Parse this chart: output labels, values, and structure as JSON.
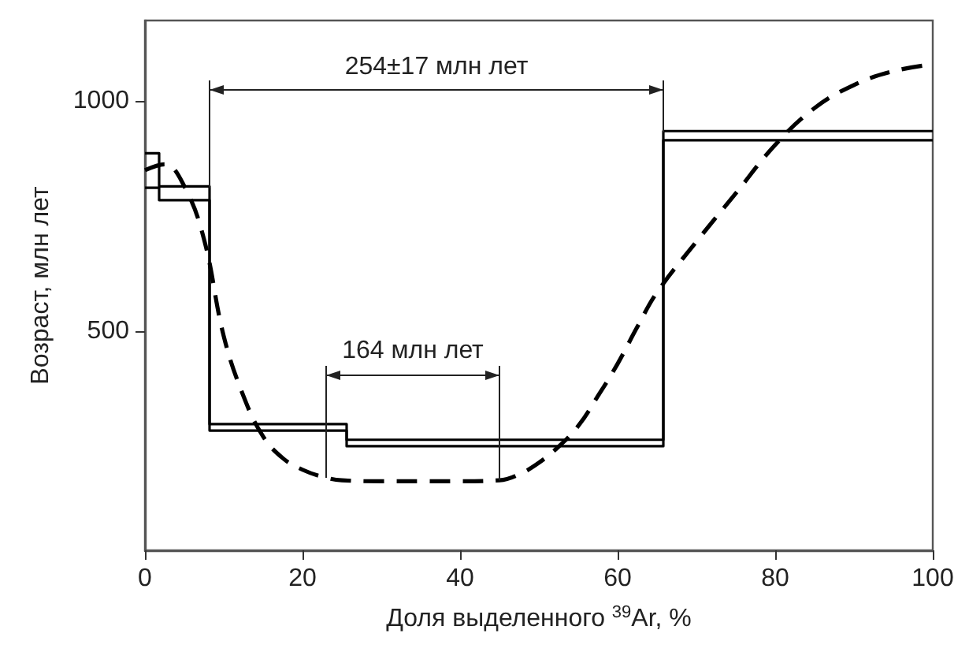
{
  "chart_data": {
    "type": "step",
    "xlabel": "Доля выделенного $^{39}$Ar, %",
    "ylabel": "Возраст, млн лет",
    "xlim": [
      0,
      100
    ],
    "xticks": [
      0,
      20,
      40,
      60,
      80,
      100
    ],
    "ylim": [
      25,
      1175
    ],
    "yticks": [
      500,
      1000
    ],
    "grid": false,
    "series": [
      {
        "color": "#000000",
        "x": [
          0,
          1.8,
          8.2,
          25.6,
          65.8,
          100
        ],
        "values": [
          887,
          815,
          299,
          265,
          935,
          935
        ]
      },
      {
        "color": "#000000",
        "x": [
          0,
          1.8,
          8.2,
          25.6,
          65.8,
          100
        ],
        "values": [
          812,
          785,
          285,
          251,
          915,
          915
        ]
      },
      {
        "type": "line",
        "line_style": "dashed",
        "color": "#000000",
        "x": [
          0,
          2.5,
          5,
          7.5,
          10,
          12.5,
          15,
          17.5,
          20,
          22.5,
          25,
          30,
          35,
          40,
          45,
          47.5,
          50,
          52.5,
          55,
          57.5,
          60,
          62.5,
          65,
          70,
          75,
          80,
          85,
          90,
          95,
          100
        ],
        "values": [
          850,
          863,
          815,
          700,
          490,
          360,
          272,
          225,
          200,
          185,
          177,
          175,
          175,
          175,
          177,
          190,
          215,
          250,
          295,
          360,
          430,
          510,
          585,
          695,
          800,
          905,
          985,
          1035,
          1065,
          1080
        ]
      }
    ],
    "annotations": [
      "254±17 млн лет",
      {
        "text": "164 млн лет",
        "x": 45,
        "y": 177
      }
    ]
  }
}
